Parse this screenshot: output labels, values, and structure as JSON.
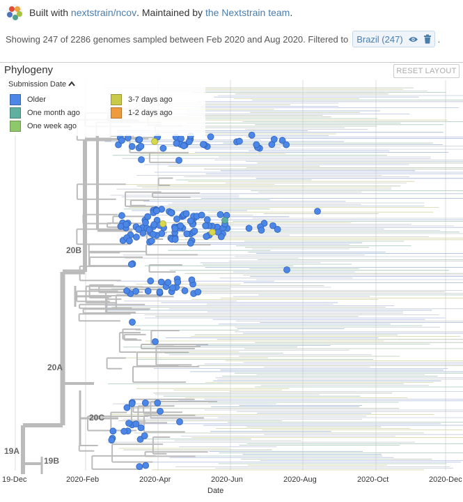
{
  "header": {
    "built_with": "Built with",
    "build_link": "nextstrain/ncov",
    "maintained_by": ". Maintained by",
    "team_link": "the Nextstrain team",
    "end": "."
  },
  "summary": {
    "text": "Showing 247 of 2286 genomes sampled between Feb 2020 and Aug 2020. Filtered to",
    "filter_label": "Brazil (247)",
    "trailing": "."
  },
  "panel": {
    "title": "Phylogeny",
    "reset_label": "RESET LAYOUT"
  },
  "legend": {
    "title": "Submission Date",
    "items": [
      {
        "label": "Older",
        "color": "#4c86e6"
      },
      {
        "label": "One month ago",
        "color": "#5fb0a0"
      },
      {
        "label": "One week ago",
        "color": "#8fc76b"
      },
      {
        "label": "3-7 days ago",
        "color": "#c9c94a"
      },
      {
        "label": "1-2 days ago",
        "color": "#ee9b3d"
      }
    ]
  },
  "tree": {
    "clades": [
      "20B",
      "20A",
      "20C",
      "19A",
      "19B"
    ],
    "axis_label": "Date",
    "ticks": [
      "19-Dec",
      "2020-Feb",
      "2020-Apr",
      "2020-Jun",
      "2020-Aug",
      "2020-Oct",
      "2020-Dec"
    ],
    "highlight_color": "#4c86e6",
    "branch_color": "#bbbbbb"
  }
}
